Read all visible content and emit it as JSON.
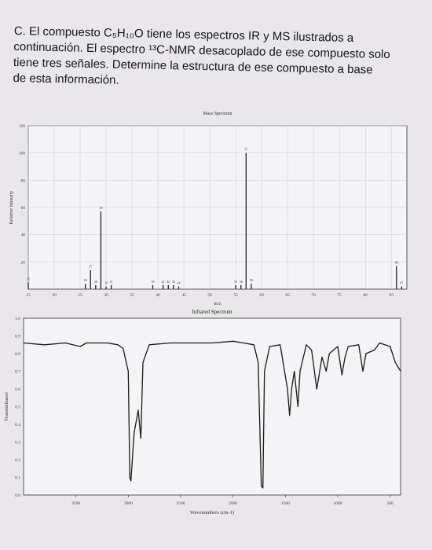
{
  "problem": {
    "lines": [
      "C. El compuesto C₅H₁₀O tiene los espectros IR y MS ilustrados a",
      "continuación. El espectro ¹³C-NMR desacoplado de ese compuesto solo",
      "tiene tres señales. Determine la estructura de ese compuesto a base",
      "de esta información."
    ]
  },
  "chart_data": [
    {
      "type": "bar",
      "title": "Mass Spectrum",
      "xlabel": "m/z",
      "ylabel": "Relative Intensity",
      "xlim": [
        15,
        88
      ],
      "ylim": [
        0,
        120
      ],
      "yticks": [
        20,
        40,
        60,
        80,
        100,
        120
      ],
      "xticks": [
        15,
        20,
        25,
        30,
        35,
        40,
        45,
        50,
        55,
        60,
        65,
        70,
        75,
        80,
        85
      ],
      "peaks": [
        {
          "mz": 15,
          "intensity": 5
        },
        {
          "mz": 26,
          "intensity": 4
        },
        {
          "mz": 27,
          "intensity": 14
        },
        {
          "mz": 28,
          "intensity": 3
        },
        {
          "mz": 29,
          "intensity": 57
        },
        {
          "mz": 30,
          "intensity": 2
        },
        {
          "mz": 31,
          "intensity": 3
        },
        {
          "mz": 39,
          "intensity": 3
        },
        {
          "mz": 41,
          "intensity": 3
        },
        {
          "mz": 42,
          "intensity": 3
        },
        {
          "mz": 43,
          "intensity": 3
        },
        {
          "mz": 44,
          "intensity": 2
        },
        {
          "mz": 55,
          "intensity": 3
        },
        {
          "mz": 56,
          "intensity": 3
        },
        {
          "mz": 57,
          "intensity": 100
        },
        {
          "mz": 58,
          "intensity": 4
        },
        {
          "mz": 86,
          "intensity": 17
        },
        {
          "mz": 87,
          "intensity": 2
        }
      ],
      "labels": {
        "57": "57",
        "29": "29"
      }
    },
    {
      "type": "line",
      "title": "Infrared Spectrum",
      "xlabel": "Wavenumbers (cm-1)",
      "ylabel": "Transmittance",
      "xlim": [
        4000,
        400
      ],
      "ylim": [
        0,
        1.0
      ],
      "xticks": [
        3500,
        3000,
        2500,
        2000,
        1500,
        1000,
        500
      ],
      "yticks": [
        0,
        0.1,
        0.2,
        0.3,
        0.4,
        0.5,
        0.6,
        0.7,
        0.8,
        0.9,
        1.0
      ],
      "points": [
        [
          4000,
          0.86
        ],
        [
          3800,
          0.85
        ],
        [
          3600,
          0.86
        ],
        [
          3460,
          0.84
        ],
        [
          3400,
          0.86
        ],
        [
          3200,
          0.86
        ],
        [
          3100,
          0.85
        ],
        [
          3050,
          0.83
        ],
        [
          3000,
          0.7
        ],
        [
          2985,
          0.1
        ],
        [
          2975,
          0.08
        ],
        [
          2945,
          0.35
        ],
        [
          2905,
          0.48
        ],
        [
          2880,
          0.32
        ],
        [
          2860,
          0.75
        ],
        [
          2800,
          0.85
        ],
        [
          2600,
          0.86
        ],
        [
          2400,
          0.86
        ],
        [
          2200,
          0.86
        ],
        [
          2000,
          0.87
        ],
        [
          1900,
          0.86
        ],
        [
          1800,
          0.85
        ],
        [
          1760,
          0.75
        ],
        [
          1730,
          0.05
        ],
        [
          1715,
          0.04
        ],
        [
          1700,
          0.7
        ],
        [
          1650,
          0.84
        ],
        [
          1550,
          0.85
        ],
        [
          1480,
          0.6
        ],
        [
          1460,
          0.45
        ],
        [
          1440,
          0.6
        ],
        [
          1415,
          0.7
        ],
        [
          1380,
          0.5
        ],
        [
          1360,
          0.7
        ],
        [
          1300,
          0.85
        ],
        [
          1250,
          0.82
        ],
        [
          1200,
          0.6
        ],
        [
          1150,
          0.78
        ],
        [
          1110,
          0.7
        ],
        [
          1080,
          0.8
        ],
        [
          1000,
          0.84
        ],
        [
          960,
          0.68
        ],
        [
          930,
          0.78
        ],
        [
          900,
          0.84
        ],
        [
          800,
          0.85
        ],
        [
          760,
          0.7
        ],
        [
          730,
          0.8
        ],
        [
          650,
          0.82
        ],
        [
          600,
          0.86
        ],
        [
          500,
          0.84
        ],
        [
          450,
          0.75
        ],
        [
          400,
          0.7
        ]
      ]
    }
  ]
}
